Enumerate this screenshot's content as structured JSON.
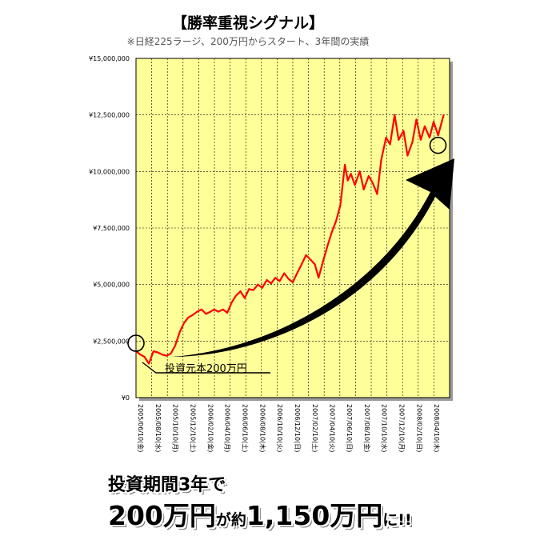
{
  "chart_data": {
    "type": "line",
    "title": "【勝率重視シグナル】",
    "subtitle": "※日経225ラージ、200万円からスタート、3年間の実績",
    "ylim": [
      0,
      15000000
    ],
    "y_ticks": [
      "¥0",
      "¥2,500,000",
      "¥5,000,000",
      "¥7,500,000",
      "¥10,000,000",
      "¥12,500,000",
      "¥15,000,000"
    ],
    "x_ticks": [
      "2005/06/10(金)",
      "2005/08/10(水)",
      "2005/10/10(月)",
      "2005/12/10(土)",
      "2006/02/10(金)",
      "2006/04/10(月)",
      "2006/06/10(土)",
      "2006/08/10(木)",
      "2006/10/10(火)",
      "2006/12/10(日)",
      "2007/02/10(土)",
      "2007/04/10(火)",
      "2007/06/10(日)",
      "2007/08/10(金)",
      "2007/10/10(水)",
      "2007/12/10(月)",
      "2008/02/10(日)",
      "2008/04/10(木)"
    ],
    "grid": true,
    "x_range": [
      "2005/06/10",
      "2008/06/10"
    ],
    "series": [
      {
        "color": "#ff0000",
        "points": [
          [
            "2005/06/10",
            2050000
          ],
          [
            "2005/06/25",
            1900000
          ],
          [
            "2005/07/10",
            1800000
          ],
          [
            "2005/07/25",
            1500000
          ],
          [
            "2005/08/10",
            2050000
          ],
          [
            "2005/08/25",
            2000000
          ],
          [
            "2005/09/10",
            1900000
          ],
          [
            "2005/09/25",
            1850000
          ],
          [
            "2005/10/10",
            1950000
          ],
          [
            "2005/10/25",
            2300000
          ],
          [
            "2005/11/10",
            2900000
          ],
          [
            "2005/11/25",
            3300000
          ],
          [
            "2005/12/10",
            3550000
          ],
          [
            "2005/12/25",
            3650000
          ],
          [
            "2006/01/10",
            3800000
          ],
          [
            "2006/01/25",
            3900000
          ],
          [
            "2006/02/10",
            3700000
          ],
          [
            "2006/02/25",
            3800000
          ],
          [
            "2006/03/10",
            3900000
          ],
          [
            "2006/03/25",
            3800000
          ],
          [
            "2006/04/10",
            3900000
          ],
          [
            "2006/04/25",
            3750000
          ],
          [
            "2006/05/10",
            4200000
          ],
          [
            "2006/05/25",
            4500000
          ],
          [
            "2006/06/10",
            4700000
          ],
          [
            "2006/06/25",
            4400000
          ],
          [
            "2006/07/10",
            4800000
          ],
          [
            "2006/07/25",
            4750000
          ],
          [
            "2006/08/10",
            5000000
          ],
          [
            "2006/08/25",
            4850000
          ],
          [
            "2006/09/10",
            5200000
          ],
          [
            "2006/09/25",
            5050000
          ],
          [
            "2006/10/10",
            5300000
          ],
          [
            "2006/10/25",
            5150000
          ],
          [
            "2006/11/10",
            5500000
          ],
          [
            "2006/11/25",
            5250000
          ],
          [
            "2006/12/10",
            5100000
          ],
          [
            "2006/12/25",
            5500000
          ],
          [
            "2007/01/10",
            5900000
          ],
          [
            "2007/01/25",
            6300000
          ],
          [
            "2007/02/10",
            6100000
          ],
          [
            "2007/02/25",
            5900000
          ],
          [
            "2007/03/10",
            5300000
          ],
          [
            "2007/03/25",
            6000000
          ],
          [
            "2007/04/10",
            6700000
          ],
          [
            "2007/04/25",
            7300000
          ],
          [
            "2007/05/10",
            7800000
          ],
          [
            "2007/05/25",
            8500000
          ],
          [
            "2007/06/10",
            10300000
          ],
          [
            "2007/06/20",
            9600000
          ],
          [
            "2007/07/01",
            9900000
          ],
          [
            "2007/07/15",
            9400000
          ],
          [
            "2007/08/01",
            10000000
          ],
          [
            "2007/08/15",
            9200000
          ],
          [
            "2007/09/01",
            9800000
          ],
          [
            "2007/09/15",
            9500000
          ],
          [
            "2007/10/01",
            9000000
          ],
          [
            "2007/10/15",
            10500000
          ],
          [
            "2007/11/01",
            11500000
          ],
          [
            "2007/11/15",
            11200000
          ],
          [
            "2007/12/01",
            12500000
          ],
          [
            "2007/12/15",
            11400000
          ],
          [
            "2008/01/01",
            11800000
          ],
          [
            "2008/01/15",
            10700000
          ],
          [
            "2008/02/01",
            11300000
          ],
          [
            "2008/02/15",
            12300000
          ],
          [
            "2008/03/01",
            11400000
          ],
          [
            "2008/03/15",
            12000000
          ],
          [
            "2008/04/01",
            11500000
          ],
          [
            "2008/04/15",
            12200000
          ],
          [
            "2008/05/01",
            11600000
          ],
          [
            "2008/05/20",
            12500000
          ]
        ]
      }
    ]
  },
  "annotations": {
    "start_label": "投資元本200万円"
  },
  "caption": {
    "line1": "投資期間3年で",
    "line2_a": "200万円",
    "line2_b": "が約",
    "line2_c": "1,150万円",
    "line2_d": "に!!"
  }
}
